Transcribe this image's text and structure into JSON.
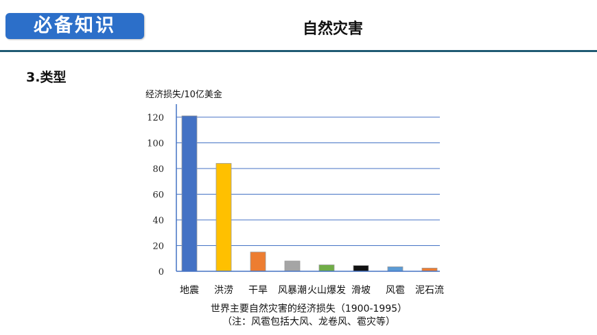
{
  "header": {
    "badge_label": "必备知识",
    "topic_title": "自然灾害",
    "accent_color": "#2c6fc9",
    "rule_color": "#1f5a73"
  },
  "section": {
    "heading": "3.类型"
  },
  "chart_data": {
    "type": "bar",
    "ylabel": "经济损失/10亿美金",
    "categories": [
      "地震",
      "洪涝",
      "干旱",
      "风暴潮",
      "火山爆发",
      "滑坡",
      "风雹",
      "泥石流"
    ],
    "values": [
      121,
      84,
      15,
      8,
      5,
      4.5,
      3.5,
      2.5
    ],
    "colors": [
      "#4472c4",
      "#ffc000",
      "#ed7d31",
      "#a5a5a5",
      "#70ad47",
      "#111111",
      "#5b9bd5",
      "#ed7d31"
    ],
    "ylim": [
      0,
      120
    ],
    "yticks": [
      0,
      20,
      40,
      60,
      80,
      100,
      120
    ],
    "grid": true,
    "grid_color": "#4472c4"
  },
  "caption": {
    "line1": "世界主要自然灾害的经济损失（1900-1995）",
    "line2": "（注：风雹包括大风、龙卷风、雹灾等）"
  }
}
